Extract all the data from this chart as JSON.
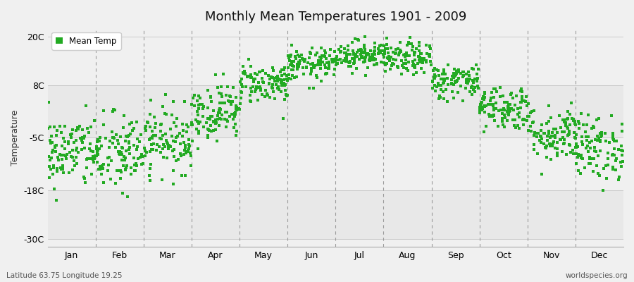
{
  "title": "Monthly Mean Temperatures 1901 - 2009",
  "ylabel": "Temperature",
  "xlabel_bottom_left": "Latitude 63.75 Longitude 19.25",
  "xlabel_bottom_right": "worldspecies.org",
  "yticks": [
    -30,
    -18,
    -5,
    8,
    20
  ],
  "ytick_labels": [
    "-30C",
    "-18C",
    "-5C",
    "8C",
    "20C"
  ],
  "ylim": [
    -32,
    22
  ],
  "months": [
    "Jan",
    "Feb",
    "Mar",
    "Apr",
    "May",
    "Jun",
    "Jul",
    "Aug",
    "Sep",
    "Oct",
    "Nov",
    "Dec"
  ],
  "dot_color": "#22aa22",
  "figure_bg": "#f0f0f0",
  "plot_bg_light": "#f0f0f0",
  "plot_bg_dark": "#e0e0e0",
  "n_years": 109,
  "mean_temps": [
    -8.5,
    -9.0,
    -5.5,
    1.5,
    8.5,
    13.0,
    15.5,
    14.5,
    9.0,
    2.5,
    -4.0,
    -7.5
  ],
  "std_temps": [
    4.5,
    5.0,
    4.0,
    3.5,
    2.5,
    2.0,
    1.8,
    2.0,
    2.2,
    2.8,
    3.5,
    4.0
  ],
  "seed": 42
}
